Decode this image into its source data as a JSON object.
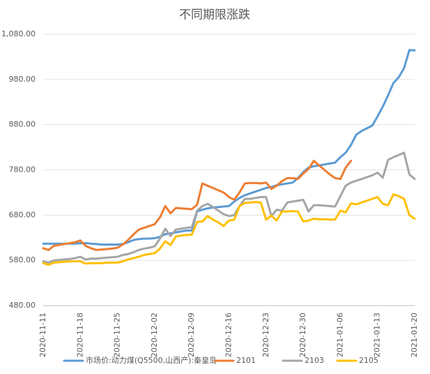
{
  "chart_data": {
    "type": "line",
    "title": "不同期限涨跌",
    "categories": [
      "2020-11-11",
      null,
      null,
      null,
      null,
      null,
      null,
      "2020-11-18",
      null,
      null,
      null,
      null,
      null,
      null,
      "2020-11-25",
      null,
      null,
      null,
      null,
      null,
      null,
      "2020-12-02",
      null,
      null,
      null,
      null,
      null,
      null,
      "2020-12-09",
      null,
      null,
      null,
      null,
      null,
      null,
      "2020-12-16",
      null,
      null,
      null,
      null,
      null,
      null,
      "2020-12-23",
      null,
      null,
      null,
      null,
      null,
      null,
      "2020-12-30",
      null,
      null,
      null,
      null,
      null,
      null,
      "2021-01-06",
      null,
      null,
      null,
      null,
      null,
      null,
      "2021-01-13",
      null,
      null,
      null,
      null,
      null,
      null,
      "2021-01-20"
    ],
    "series": [
      {
        "name": "市场价:动力煤(Q5500,山西产):秦皇岛",
        "color": "#5b9bd5",
        "values": [
          617,
          617,
          617,
          617,
          617,
          617,
          617,
          618,
          618,
          617,
          616,
          615,
          615,
          615,
          615,
          616,
          620,
          625,
          627,
          628,
          628,
          629,
          632,
          638,
          640,
          642,
          644,
          646,
          646,
          688,
          692,
          695,
          697,
          698,
          699,
          700,
          710,
          718,
          724,
          728,
          732,
          736,
          740,
          742,
          746,
          748,
          750,
          752,
          762,
          775,
          785,
          788,
          790,
          792,
          794,
          796,
          808,
          818,
          835,
          858,
          866,
          872,
          878,
          898,
          920,
          945,
          972,
          985,
          1005,
          1045,
          1044
        ]
      },
      {
        "name": "2101",
        "color": "#ed7d31",
        "values": [
          607,
          603,
          612,
          614,
          616,
          618,
          620,
          624,
          612,
          607,
          603,
          604,
          605,
          606,
          608,
          615,
          625,
          637,
          648,
          652,
          656,
          660,
          675,
          700,
          684,
          696,
          695,
          694,
          693,
          703,
          750,
          745,
          740,
          735,
          730,
          720,
          714,
          730,
          750,
          751,
          751,
          750,
          752,
          738,
          745,
          755,
          762,
          762,
          760,
          772,
          782,
          800,
          790,
          780,
          770,
          762,
          760,
          785,
          800,
          null,
          null,
          null,
          null,
          null,
          null,
          null,
          null,
          null,
          null,
          null,
          null
        ]
      },
      {
        "name": "2103",
        "color": "#a5a5a5",
        "values": [
          578,
          575,
          580,
          581,
          582,
          583,
          585,
          588,
          582,
          584,
          584,
          585,
          586,
          587,
          588,
          592,
          594,
          598,
          603,
          606,
          608,
          611,
          628,
          650,
          634,
          648,
          650,
          652,
          653,
          690,
          700,
          705,
          698,
          690,
          682,
          678,
          680,
          700,
          716,
          716,
          718,
          720,
          720,
          678,
          692,
          690,
          708,
          710,
          712,
          714,
          688,
          702,
          702,
          701,
          700,
          699,
          722,
          745,
          752,
          756,
          760,
          764,
          768,
          774,
          763,
          802,
          808,
          813,
          818,
          770,
          760
        ]
      },
      {
        "name": "2105",
        "color": "#ffc000",
        "values": [
          574,
          570,
          575,
          576,
          577,
          578,
          578,
          578,
          573,
          574,
          574,
          574,
          575,
          575,
          575,
          578,
          582,
          585,
          588,
          592,
          594,
          596,
          606,
          622,
          614,
          633,
          635,
          636,
          637,
          665,
          666,
          678,
          670,
          664,
          656,
          668,
          670,
          700,
          707,
          708,
          709,
          708,
          670,
          679,
          668,
          688,
          688,
          689,
          688,
          666,
          668,
          672,
          671,
          671,
          670,
          670,
          690,
          686,
          706,
          704,
          708,
          712,
          716,
          720,
          705,
          702,
          726,
          722,
          716,
          680,
          672
        ]
      }
    ],
    "ylim": [
      480,
      1080
    ],
    "yticks": [
      {
        "value": 480,
        "label": "480.00"
      },
      {
        "value": 580,
        "label": "580.00"
      },
      {
        "value": 680,
        "label": "680.00"
      },
      {
        "value": 780,
        "label": "780.00"
      },
      {
        "value": 880,
        "label": "880.00"
      },
      {
        "value": 980,
        "label": "980.00"
      },
      {
        "value": 1080,
        "label": "1,080.00"
      }
    ],
    "grid": true,
    "legend": "bottom"
  }
}
